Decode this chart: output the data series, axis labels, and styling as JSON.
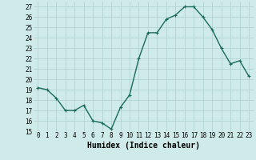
{
  "x": [
    0,
    1,
    2,
    3,
    4,
    5,
    6,
    7,
    8,
    9,
    10,
    11,
    12,
    13,
    14,
    15,
    16,
    17,
    18,
    19,
    20,
    21,
    22,
    23
  ],
  "y": [
    19.2,
    19.0,
    18.2,
    17.0,
    17.0,
    17.5,
    16.0,
    15.8,
    15.2,
    17.3,
    18.5,
    22.0,
    24.5,
    24.5,
    25.8,
    26.2,
    27.0,
    27.0,
    26.0,
    24.8,
    23.0,
    21.5,
    21.8,
    20.3
  ],
  "line_color": "#1a6b5a",
  "marker_color": "#1a6b5a",
  "bg_color": "#ceeae9",
  "grid_color": "#aed0cf",
  "xlabel": "Humidex (Indice chaleur)",
  "ylim": [
    15,
    27.5
  ],
  "xlim": [
    -0.5,
    23.5
  ],
  "yticks": [
    15,
    16,
    17,
    18,
    19,
    20,
    21,
    22,
    23,
    24,
    25,
    26,
    27
  ],
  "xticks": [
    0,
    1,
    2,
    3,
    4,
    5,
    6,
    7,
    8,
    9,
    10,
    11,
    12,
    13,
    14,
    15,
    16,
    17,
    18,
    19,
    20,
    21,
    22,
    23
  ],
  "xtick_labels": [
    "0",
    "1",
    "2",
    "3",
    "4",
    "5",
    "6",
    "7",
    "8",
    "9",
    "10",
    "11",
    "12",
    "13",
    "14",
    "15",
    "16",
    "17",
    "18",
    "19",
    "20",
    "21",
    "22",
    "23"
  ],
  "tick_fontsize": 5.5,
  "xlabel_fontsize": 7,
  "linewidth": 1.0,
  "markersize": 2.5,
  "marker": "+"
}
